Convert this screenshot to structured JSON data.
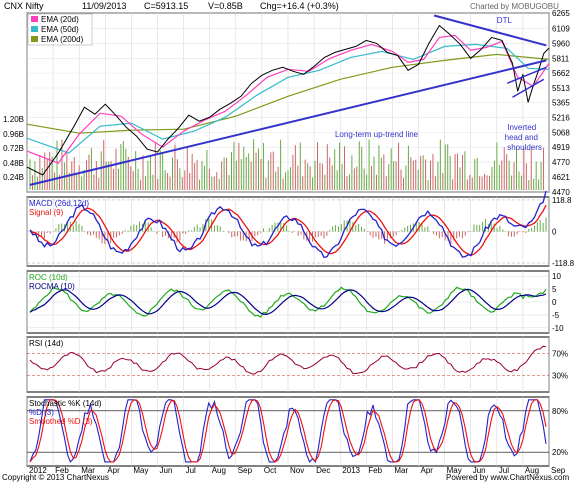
{
  "header": {
    "symbol": "CNX Nifty",
    "date": "11/09/2013",
    "close": "C=5913.15",
    "volume": "V=0.85B",
    "change": "Chg=+16.4 (+0.3%)",
    "credit": "Charted by MOBUGOBU"
  },
  "footer": {
    "copyright": "Copyright © 2013 ChartNexus",
    "powered": "Powered by www.ChartNexus.com"
  },
  "colors": {
    "price": "#000000",
    "ema20": "#ff3fbf",
    "ema50": "#33bbcc",
    "ema200": "#7f9a1a",
    "trendline": "#3333cc",
    "macd": "#2222cc",
    "signal": "#ee1111",
    "roc": "#22aa22",
    "rocma": "#000088",
    "rsi": "#990033",
    "stoch_k": "#2222cc",
    "stoch_d": "#ee1111",
    "vol_up": "#66aa44",
    "vol_down": "#cc6666"
  },
  "chart_data": [
    {
      "type": "line",
      "panel": "price",
      "legend": [
        "EMA (20d)",
        "EMA (50d)",
        "EMA (200d)"
      ],
      "y_ticks": [
        "6265",
        "6109",
        "5960",
        "5811",
        "5662",
        "5513",
        "5365",
        "5216",
        "5068",
        "4919",
        "4770",
        "4621",
        "4470"
      ],
      "ylim": [
        4470,
        6265
      ],
      "annotations": {
        "dtl": "DTL",
        "uptrend": "Long-term up-trend line",
        "ihs": "Inverted head and shoulders"
      },
      "volume_ticks": [
        "1.20B",
        "0.96B",
        "0.72B",
        "0.48B",
        "0.24B"
      ],
      "series": [
        {
          "name": "Close",
          "points": [
            [
              0,
              4720
            ],
            [
              3,
              4640
            ],
            [
              6,
              4860
            ],
            [
              9,
              5130
            ],
            [
              11,
              5320
            ],
            [
              13,
              5250
            ],
            [
              15,
              5350
            ],
            [
              17,
              5240
            ],
            [
              19,
              5120
            ],
            [
              21,
              5030
            ],
            [
              23,
              4900
            ],
            [
              25,
              4870
            ],
            [
              27,
              5000
            ],
            [
              29,
              5110
            ],
            [
              31,
              5240
            ],
            [
              33,
              5180
            ],
            [
              35,
              5220
            ],
            [
              37,
              5300
            ],
            [
              39,
              5360
            ],
            [
              41,
              5430
            ],
            [
              43,
              5560
            ],
            [
              45,
              5640
            ],
            [
              47,
              5690
            ],
            [
              49,
              5720
            ],
            [
              51,
              5680
            ],
            [
              53,
              5650
            ],
            [
              55,
              5730
            ],
            [
              57,
              5820
            ],
            [
              59,
              5870
            ],
            [
              61,
              5900
            ],
            [
              63,
              5930
            ],
            [
              65,
              5990
            ],
            [
              67,
              5960
            ],
            [
              69,
              5870
            ],
            [
              71,
              5840
            ],
            [
              73,
              5690
            ],
            [
              75,
              5750
            ],
            [
              77,
              5960
            ],
            [
              79,
              6140
            ],
            [
              81,
              6050
            ],
            [
              83,
              5950
            ],
            [
              85,
              5810
            ],
            [
              87,
              5900
            ],
            [
              89,
              6020
            ],
            [
              91,
              5990
            ],
            [
              93,
              5760
            ],
            [
              94,
              5480
            ],
            [
              95,
              5650
            ],
            [
              96,
              5370
            ],
            [
              97,
              5540
            ],
            [
              98,
              5690
            ],
            [
              99,
              5860
            ],
            [
              100,
              5913
            ]
          ]
        },
        {
          "name": "EMA (20d)",
          "points": [
            [
              0,
              4880
            ],
            [
              6,
              4760
            ],
            [
              10,
              5050
            ],
            [
              14,
              5260
            ],
            [
              18,
              5230
            ],
            [
              22,
              5050
            ],
            [
              26,
              4920
            ],
            [
              30,
              5080
            ],
            [
              34,
              5190
            ],
            [
              38,
              5280
            ],
            [
              42,
              5440
            ],
            [
              46,
              5620
            ],
            [
              50,
              5700
            ],
            [
              54,
              5680
            ],
            [
              58,
              5810
            ],
            [
              62,
              5890
            ],
            [
              66,
              5950
            ],
            [
              70,
              5880
            ],
            [
              73,
              5770
            ],
            [
              76,
              5800
            ],
            [
              79,
              6020
            ],
            [
              82,
              6040
            ],
            [
              85,
              5890
            ],
            [
              88,
              5920
            ],
            [
              91,
              5980
            ],
            [
              94,
              5620
            ],
            [
              97,
              5530
            ],
            [
              100,
              5760
            ]
          ]
        },
        {
          "name": "EMA (50d)",
          "points": [
            [
              0,
              5010
            ],
            [
              8,
              4860
            ],
            [
              14,
              5130
            ],
            [
              20,
              5160
            ],
            [
              26,
              5000
            ],
            [
              32,
              5080
            ],
            [
              38,
              5220
            ],
            [
              44,
              5440
            ],
            [
              50,
              5620
            ],
            [
              56,
              5690
            ],
            [
              62,
              5820
            ],
            [
              68,
              5880
            ],
            [
              74,
              5800
            ],
            [
              80,
              5930
            ],
            [
              86,
              5950
            ],
            [
              92,
              5910
            ],
            [
              96,
              5710
            ],
            [
              100,
              5700
            ]
          ]
        },
        {
          "name": "EMA (200d)",
          "points": [
            [
              0,
              5150
            ],
            [
              10,
              5060
            ],
            [
              20,
              5090
            ],
            [
              30,
              5100
            ],
            [
              40,
              5230
            ],
            [
              50,
              5430
            ],
            [
              60,
              5600
            ],
            [
              70,
              5720
            ],
            [
              80,
              5790
            ],
            [
              90,
              5850
            ],
            [
              100,
              5800
            ]
          ]
        }
      ]
    },
    {
      "type": "bar",
      "panel": "macd",
      "legend": [
        "MACD (26d,12d)",
        "Signal (9)"
      ],
      "y_ticks": [
        "118.8",
        "0",
        "-118.8"
      ],
      "ylim": [
        -130,
        130
      ]
    },
    {
      "type": "line",
      "panel": "roc",
      "legend": [
        "ROC (10d)",
        "ROCMA (10)"
      ],
      "y_ticks": [
        "10",
        "5",
        "0",
        "-5",
        "-10"
      ],
      "ylim": [
        -12,
        12
      ]
    },
    {
      "type": "line",
      "panel": "rsi",
      "legend": [
        "RSI (14d)"
      ],
      "y_ticks": [
        "70%",
        "30%"
      ],
      "ylim": [
        0,
        100
      ]
    },
    {
      "type": "line",
      "panel": "stochastic",
      "legend": [
        "Stochastic %K (14d)",
        "%D (3)",
        "Smoothed %D (3)"
      ],
      "y_ticks": [
        "80%",
        "20%"
      ],
      "ylim": [
        0,
        100
      ],
      "x_ticks": [
        "2012",
        "Feb",
        "Mar",
        "Apr",
        "May",
        "Jun",
        "Jul",
        "Aug",
        "Sep",
        "Oct",
        "Nov",
        "Dec",
        "2013",
        "Feb",
        "Mar",
        "Apr",
        "May",
        "Jun",
        "Jul",
        "Aug",
        "Sep"
      ]
    }
  ]
}
